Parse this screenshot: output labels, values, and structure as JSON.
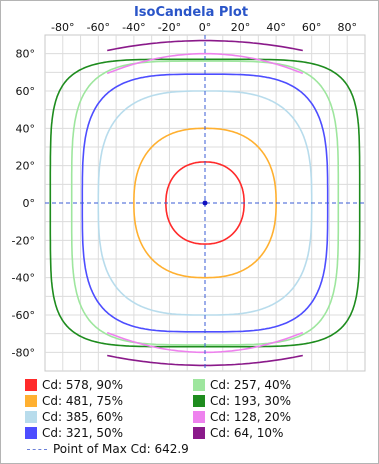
{
  "chart_data": {
    "type": "isocandela contour",
    "title": "IsoCandela Plot",
    "x_ticks": [
      "-80°",
      "-60°",
      "-40°",
      "-20°",
      "0°",
      "20°",
      "40°",
      "60°",
      "80°"
    ],
    "y_ticks": [
      "80°",
      "60°",
      "40°",
      "20°",
      "0°",
      "-20°",
      "-40°",
      "-60°",
      "-80°"
    ],
    "x_values": [
      -80,
      -60,
      -40,
      -20,
      0,
      20,
      40,
      60,
      80
    ],
    "y_values": [
      80,
      60,
      40,
      20,
      0,
      -20,
      -40,
      -60,
      -80
    ],
    "xlim": [
      -90,
      90
    ],
    "ylim": [
      -90,
      90
    ],
    "grid": true,
    "legend_position": "bottom",
    "max_point": [
      0,
      0
    ],
    "contours": [
      {
        "label": "Cd: 578, 90%",
        "color": "#ff2a2a",
        "a": 22,
        "b": 22,
        "n": 2.2
      },
      {
        "label": "Cd: 481, 75%",
        "color": "#ffb030",
        "a": 40,
        "b": 40,
        "n": 2.4
      },
      {
        "label": "Cd: 385, 60%",
        "color": "#b8dcec",
        "a": 60,
        "b": 60,
        "n": 3.0
      },
      {
        "label": "Cd: 321, 50%",
        "color": "#4d4dff",
        "a": 69,
        "b": 69,
        "n": 3.6
      },
      {
        "label": "Cd: 257, 40%",
        "color": "#9ee69e",
        "a": 75,
        "b": 76,
        "n": 4.2
      },
      {
        "label": "Cd: 193, 30%",
        "color": "#1e8c1e",
        "a": 87,
        "b": 77,
        "n": 5.2
      },
      {
        "label": "Cd: 128, 20%",
        "color": "#ee82ee",
        "cap": 80
      },
      {
        "label": "Cd: 64, 10%",
        "color": "#8a1a8a",
        "cap": 87
      }
    ],
    "legend_order": [
      0,
      4,
      1,
      5,
      2,
      6,
      3,
      7
    ],
    "max_label": "Point of Max Cd: 642.9",
    "max_color": "#6a7fd8"
  }
}
